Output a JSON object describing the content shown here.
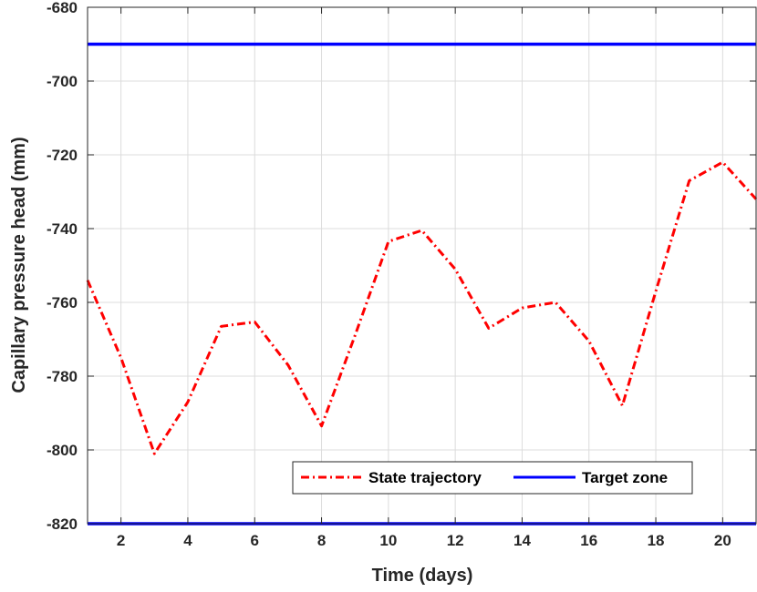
{
  "chart_data": {
    "type": "line",
    "title": "",
    "xlabel": "Time (days)",
    "ylabel": "Capillary pressure head (mm)",
    "xlim": [
      1,
      21
    ],
    "ylim": [
      -820,
      -680
    ],
    "xticks": [
      2,
      4,
      6,
      8,
      10,
      12,
      14,
      16,
      18,
      20
    ],
    "yticks": [
      -820,
      -800,
      -780,
      -760,
      -740,
      -720,
      -700,
      -680
    ],
    "grid": true,
    "legend_position": "bottom-right",
    "series": [
      {
        "name": "State trajectory",
        "color": "#ff0000",
        "style": "dash-dot",
        "x": [
          1,
          2,
          3,
          4,
          5,
          6,
          7,
          8,
          9,
          10,
          11,
          12,
          13,
          14,
          15,
          16,
          17,
          18,
          19,
          20,
          21
        ],
        "y": [
          -754,
          -775,
          -801,
          -787,
          -766.5,
          -765.3,
          -777,
          -793.5,
          -769,
          -743.5,
          -740.5,
          -751,
          -767,
          -761.5,
          -760,
          -770.5,
          -788,
          -757,
          -727,
          -722,
          -732
        ]
      },
      {
        "name": "Target zone",
        "color": "#0000ff",
        "style": "solid",
        "x": [
          1,
          21
        ],
        "y_upper": -690,
        "y_lower": -820
      }
    ]
  }
}
